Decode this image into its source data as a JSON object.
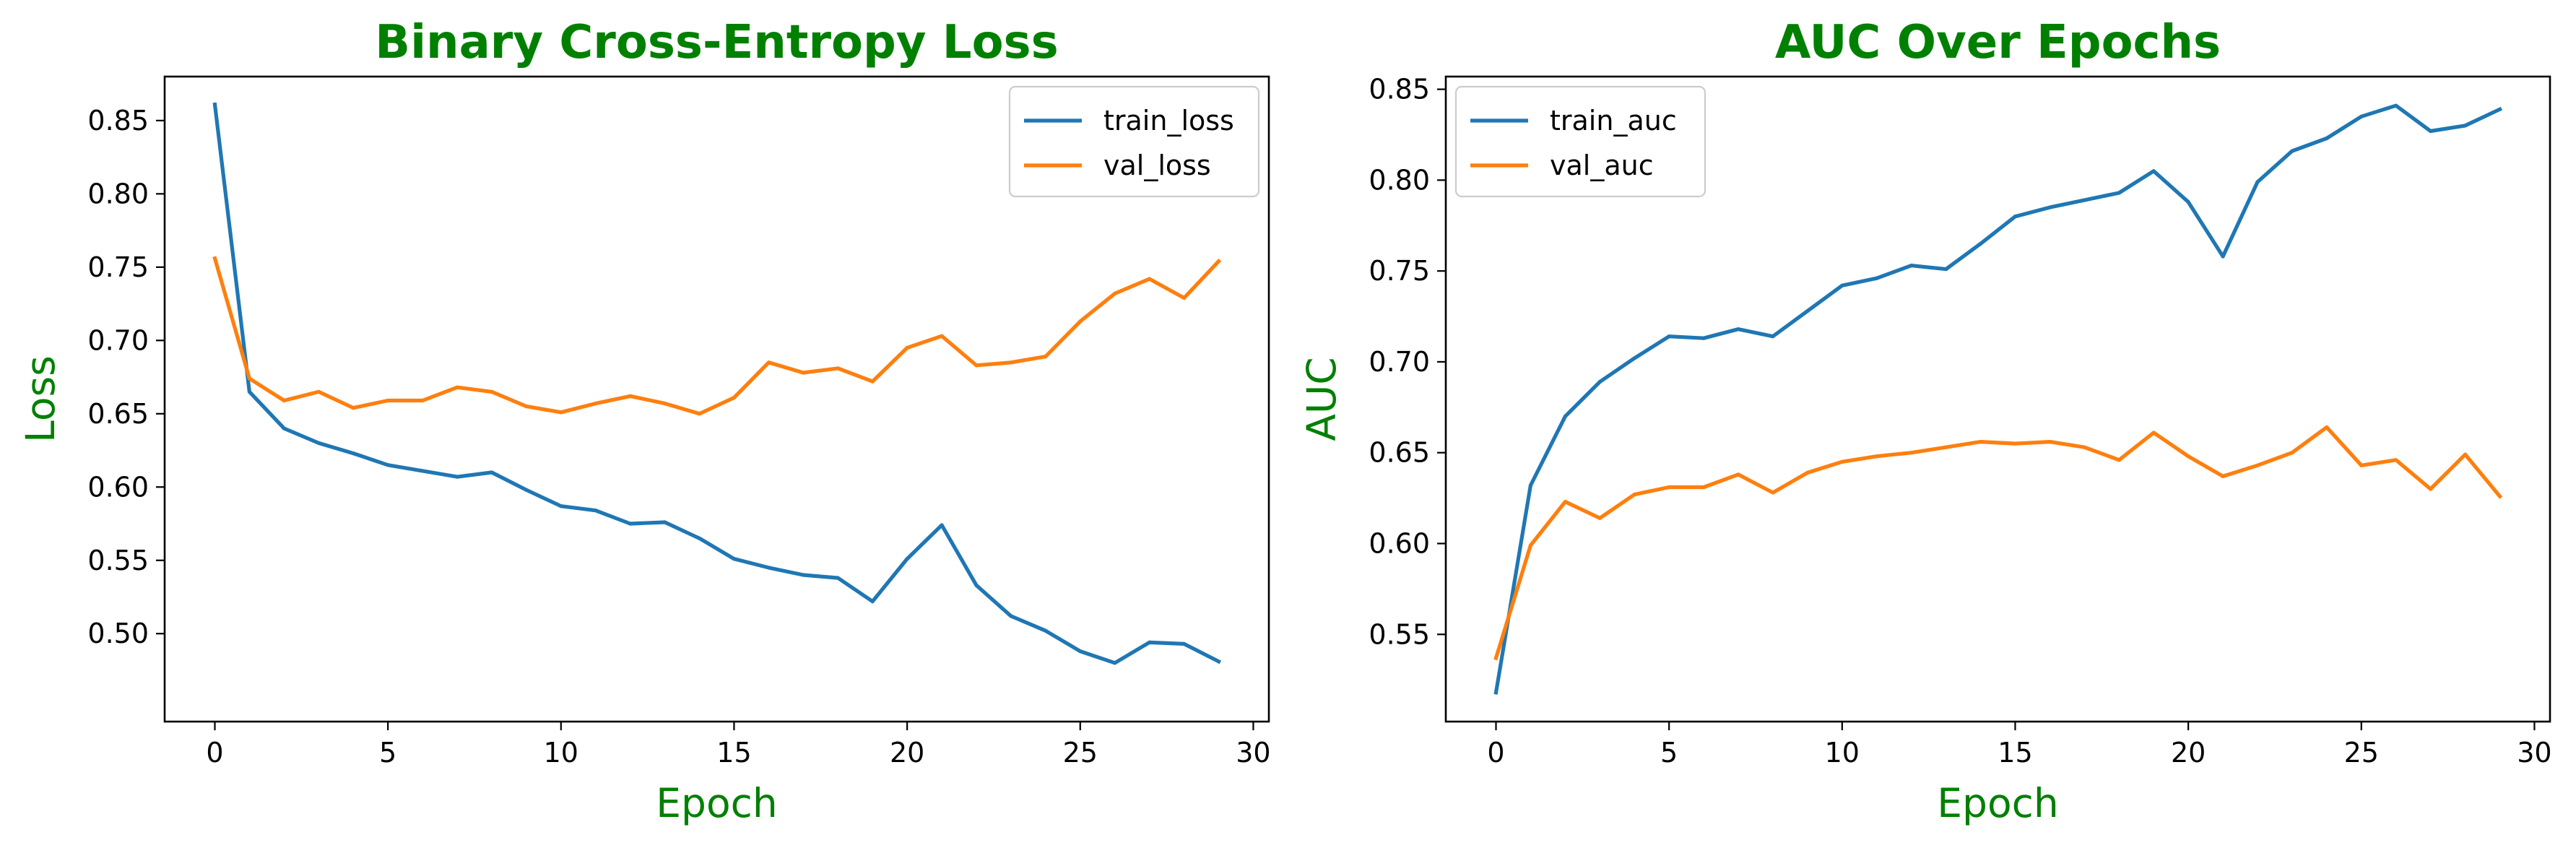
{
  "chart_data": [
    {
      "type": "line",
      "title": "Binary Cross-Entropy Loss",
      "xlabel": "Epoch",
      "ylabel": "Loss",
      "xlim": [
        -1.45,
        30.45
      ],
      "ylim": [
        0.44,
        0.88
      ],
      "xticks": [
        0,
        5,
        10,
        15,
        20,
        25,
        30
      ],
      "yticks": [
        0.5,
        0.55,
        0.6,
        0.65,
        0.7,
        0.75,
        0.8,
        0.85
      ],
      "grid": false,
      "legend_position": "top-right",
      "x": [
        0,
        1,
        2,
        3,
        4,
        5,
        6,
        7,
        8,
        9,
        10,
        11,
        12,
        13,
        14,
        15,
        16,
        17,
        18,
        19,
        20,
        21,
        22,
        23,
        24,
        25,
        26,
        27,
        28,
        29
      ],
      "series": [
        {
          "name": "train_loss",
          "color": "#1f77b4",
          "values": [
            0.861,
            0.665,
            0.64,
            0.63,
            0.623,
            0.615,
            0.611,
            0.607,
            0.61,
            0.598,
            0.587,
            0.584,
            0.575,
            0.576,
            0.565,
            0.551,
            0.545,
            0.54,
            0.538,
            0.522,
            0.551,
            0.574,
            0.533,
            0.512,
            0.502,
            0.488,
            0.48,
            0.494,
            0.493,
            0.481
          ]
        },
        {
          "name": "val_loss",
          "color": "#ff7f0e",
          "values": [
            0.756,
            0.674,
            0.659,
            0.665,
            0.654,
            0.659,
            0.659,
            0.668,
            0.665,
            0.655,
            0.651,
            0.657,
            0.662,
            0.657,
            0.65,
            0.661,
            0.685,
            0.678,
            0.681,
            0.672,
            0.695,
            0.703,
            0.683,
            0.685,
            0.689,
            0.713,
            0.732,
            0.742,
            0.729,
            0.754
          ]
        }
      ]
    },
    {
      "type": "line",
      "title": "AUC Over Epochs",
      "xlabel": "Epoch",
      "ylabel": "AUC",
      "xlim": [
        -1.45,
        30.45
      ],
      "ylim": [
        0.502,
        0.857
      ],
      "xticks": [
        0,
        5,
        10,
        15,
        20,
        25,
        30
      ],
      "yticks": [
        0.55,
        0.6,
        0.65,
        0.7,
        0.75,
        0.8,
        0.85
      ],
      "grid": false,
      "legend_position": "top-left",
      "x": [
        0,
        1,
        2,
        3,
        4,
        5,
        6,
        7,
        8,
        9,
        10,
        11,
        12,
        13,
        14,
        15,
        16,
        17,
        18,
        19,
        20,
        21,
        22,
        23,
        24,
        25,
        26,
        27,
        28,
        29
      ],
      "series": [
        {
          "name": "train_auc",
          "color": "#1f77b4",
          "values": [
            0.518,
            0.632,
            0.67,
            0.689,
            0.702,
            0.714,
            0.713,
            0.718,
            0.714,
            0.728,
            0.742,
            0.746,
            0.753,
            0.751,
            0.765,
            0.78,
            0.785,
            0.789,
            0.793,
            0.805,
            0.788,
            0.758,
            0.799,
            0.816,
            0.823,
            0.835,
            0.841,
            0.827,
            0.83,
            0.839
          ]
        },
        {
          "name": "val_auc",
          "color": "#ff7f0e",
          "values": [
            0.537,
            0.599,
            0.623,
            0.614,
            0.627,
            0.631,
            0.631,
            0.638,
            0.628,
            0.639,
            0.645,
            0.648,
            0.65,
            0.653,
            0.656,
            0.655,
            0.656,
            0.653,
            0.646,
            0.661,
            0.648,
            0.637,
            0.643,
            0.65,
            0.664,
            0.643,
            0.646,
            0.63,
            0.649,
            0.626
          ]
        }
      ]
    }
  ],
  "theme": {
    "label_color": "#008000",
    "axis_color": "#000000",
    "background": "#ffffff"
  }
}
